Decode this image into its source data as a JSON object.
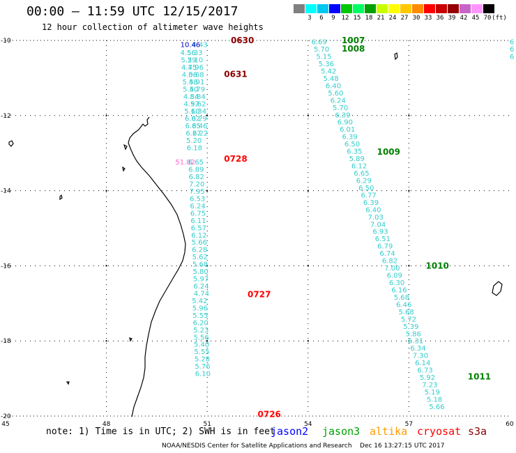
{
  "header": {
    "title": "00:00 – 11:59 UTC 12/15/2017",
    "subtitle": "12 hour collection of altimeter wave heights"
  },
  "legend": {
    "unit": "(ft)",
    "items": [
      {
        "label": "",
        "color": "#808080"
      },
      {
        "label": "3",
        "color": "#00ffff"
      },
      {
        "label": "6",
        "color": "#00c8f0"
      },
      {
        "label": "9",
        "color": "#0000ff"
      },
      {
        "label": "12",
        "color": "#00c800"
      },
      {
        "label": "15",
        "color": "#00ff64"
      },
      {
        "label": "18",
        "color": "#00a000"
      },
      {
        "label": "21",
        "color": "#c8ff00"
      },
      {
        "label": "24",
        "color": "#ffff00"
      },
      {
        "label": "27",
        "color": "#ffc800"
      },
      {
        "label": "30",
        "color": "#ff8c00"
      },
      {
        "label": "33",
        "color": "#ff0000"
      },
      {
        "label": "36",
        "color": "#c80000"
      },
      {
        "label": "39",
        "color": "#960000"
      },
      {
        "label": "42",
        "color": "#c864c8"
      },
      {
        "label": "45",
        "color": "#ff96ff"
      },
      {
        "label": "70",
        "color": "#000000"
      }
    ]
  },
  "footer": {
    "note": "note: 1) Time is in UTC; 2) SWH is in feet",
    "satellites": [
      {
        "name": "jason2",
        "color": "#0000ff"
      },
      {
        "name": "jason3",
        "color": "#00a000"
      },
      {
        "name": "altika",
        "color": "#ff9900"
      },
      {
        "name": "cryosat",
        "color": "#ff0000"
      },
      {
        "name": "s3a",
        "color": "#8b0000"
      }
    ],
    "credit": "NOAA/NESDIS Center for Satellite Applications and Research    Dec 16 13:27:15 UTC 2017"
  },
  "chart_data": {
    "type": "scatter",
    "xlim": [
      45,
      60
    ],
    "ylim": [
      -20,
      -10
    ],
    "x_ticks": [
      "45",
      "48",
      "51",
      "54",
      "57",
      "60"
    ],
    "y_ticks": [
      "-10",
      "-12",
      "-14",
      "-16",
      "-18",
      "-20"
    ],
    "grid": true,
    "value_color": "#33cccc",
    "tracks": [
      {
        "x": 50.55,
        "y": -10.1,
        "values": [
          "4.43"
        ]
      },
      {
        "x": 50.2,
        "y": -10.1,
        "values": [
          "10.46"
        ],
        "color": "#0000cc"
      },
      {
        "x": 50.2,
        "y": -10.32,
        "values": [
          "4.56",
          "5.29",
          "4.75",
          "4.06",
          "5.58",
          "5.40",
          "4.84",
          "4.97",
          "5.10",
          "6.02",
          "6.85",
          "6.27",
          "5.20",
          "6.18"
        ]
      },
      {
        "x": 50.4,
        "y": -10.32,
        "values": [
          "5.33",
          "5.10",
          "4.96",
          "5.68",
          "4.91",
          "5.79",
          "5.84",
          "5.62",
          "6.34",
          "6.29",
          "6.46",
          "6.22"
        ]
      },
      {
        "x": 50.05,
        "y": -13.23,
        "values": [
          "51.82"
        ],
        "color": "#ff66cc"
      },
      {
        "x": 50.43,
        "y": -13.23,
        "values": [
          "6.65",
          "6.89",
          "6.82",
          "7.20",
          "7.95",
          "6.53",
          "6.24",
          "6.75",
          "6.11",
          "6.57",
          "6.12",
          "5.66",
          "6.28",
          "5.62",
          "5.68",
          "5.80",
          "5.97",
          "6.24",
          "4.74",
          "5.42",
          "5.96",
          "5.55",
          "6.20",
          "5.23",
          "5.56",
          "5.40",
          "5.55",
          "5.28",
          "5.76",
          "6.10"
        ]
      },
      {
        "x": 54.1,
        "y": -10.03,
        "values": [
          "6.69",
          "5.70",
          "5.15",
          "5.36",
          "5.42",
          "5.48",
          "6.40",
          "5.60",
          "6.24",
          "5.70",
          "6.39",
          "6.90",
          "6.01",
          "6.39",
          "6.50",
          "6.35",
          "5.89",
          "6.12",
          "6.65",
          "6.29",
          "6.50",
          "6.77",
          "6.39",
          "6.40",
          "7.03",
          "7.04",
          "6.93",
          "6.51",
          "6.79",
          "6.74",
          "6.82",
          "7.00",
          "6.09",
          "6.30",
          "6.16",
          "5.68",
          "6.46",
          "5.68",
          "5.72",
          "5.39",
          "5.86",
          "6.31",
          "6.34",
          "7.30",
          "6.14",
          "6.73",
          "5.92",
          "7.23",
          "5.19",
          "5.18",
          "5.66"
        ]
      },
      {
        "x": 60.0,
        "y": -10.03,
        "values": [
          "6",
          "6",
          "6"
        ]
      }
    ],
    "pass_labels": [
      {
        "text": "0630",
        "x": 51.7,
        "y": -10.0,
        "color": "#8b0000"
      },
      {
        "text": "0631",
        "x": 51.5,
        "y": -10.9,
        "color": "#8b0000"
      },
      {
        "text": "0728",
        "x": 51.5,
        "y": -13.15,
        "color": "#ff0000"
      },
      {
        "text": "0727",
        "x": 52.2,
        "y": -16.76,
        "color": "#ff0000"
      },
      {
        "text": "0726",
        "x": 52.5,
        "y": -19.95,
        "color": "#ff0000"
      },
      {
        "text": "1007",
        "x": 55.0,
        "y": -10.0,
        "color": "#008000"
      },
      {
        "text": "1008",
        "x": 55.0,
        "y": -10.22,
        "color": "#008000"
      },
      {
        "text": "1009",
        "x": 56.05,
        "y": -12.97,
        "color": "#008000"
      },
      {
        "text": "1010",
        "x": 57.5,
        "y": -16.0,
        "color": "#008000"
      },
      {
        "text": "1011",
        "x": 58.75,
        "y": -18.95,
        "color": "#008000"
      }
    ]
  }
}
